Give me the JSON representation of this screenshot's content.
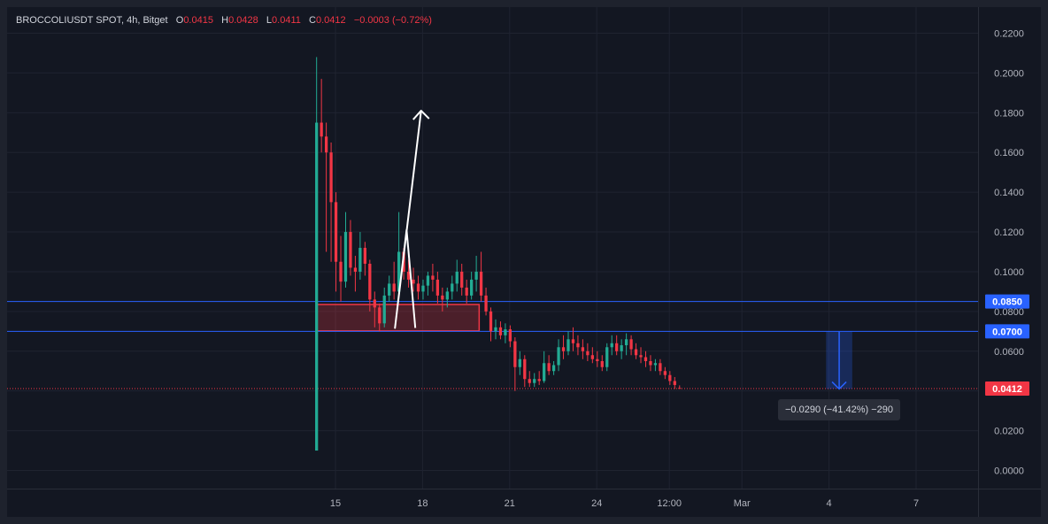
{
  "legend": {
    "symbol": "BROCCOLIUSDT SPOT, 4h, Bitget",
    "o_label": "O",
    "o_value": "0.0415",
    "h_label": "H",
    "h_value": "0.0428",
    "l_label": "L",
    "l_value": "0.0411",
    "c_label": "C",
    "c_value": "0.0412",
    "change": "−0.0003 (−0.72%)"
  },
  "measure_label": "−0.0290 (−41.42%) −290",
  "colors": {
    "up": "#22ab94",
    "down": "#f23645",
    "level_line": "#2962ff",
    "zone_fill": "#f23645",
    "background": "#131722",
    "grid": "#1f2330"
  },
  "chart_data": {
    "type": "candlestick",
    "title": "BROCCOLIUSDT SPOT, 4h, Bitget",
    "ylim": [
      -0.01,
      0.225
    ],
    "y_ticks": [
      "0.0000",
      "0.0200",
      "0.0400",
      "0.0600",
      "0.0800",
      "0.1000",
      "0.1200",
      "0.1400",
      "0.1600",
      "0.1800",
      "0.2000",
      "0.2200"
    ],
    "x_ticks": [
      {
        "label": "15",
        "day": 0
      },
      {
        "label": "18",
        "day": 3
      },
      {
        "label": "21",
        "day": 6
      },
      {
        "label": "24",
        "day": 9
      },
      {
        "label": "12:00",
        "day": 11.5
      },
      {
        "label": "Mar",
        "day": 14
      },
      {
        "label": "4",
        "day": 17
      },
      {
        "label": "7",
        "day": 20
      }
    ],
    "xlim_days": [
      -11.25,
      23.75
    ],
    "candle_start_day": -0.65,
    "candle_interval_days": 0.1667,
    "candles": [
      [
        0.01,
        0.208,
        0.01,
        0.175
      ],
      [
        0.175,
        0.197,
        0.16,
        0.168
      ],
      [
        0.168,
        0.175,
        0.11,
        0.16
      ],
      [
        0.16,
        0.165,
        0.105,
        0.135
      ],
      [
        0.135,
        0.14,
        0.09,
        0.105
      ],
      [
        0.105,
        0.118,
        0.085,
        0.095
      ],
      [
        0.095,
        0.13,
        0.092,
        0.12
      ],
      [
        0.12,
        0.126,
        0.098,
        0.102
      ],
      [
        0.102,
        0.108,
        0.09,
        0.1
      ],
      [
        0.1,
        0.12,
        0.096,
        0.112
      ],
      [
        0.112,
        0.115,
        0.098,
        0.104
      ],
      [
        0.104,
        0.106,
        0.08,
        0.086
      ],
      [
        0.086,
        0.09,
        0.072,
        0.082
      ],
      [
        0.082,
        0.084,
        0.07,
        0.074
      ],
      [
        0.074,
        0.092,
        0.072,
        0.088
      ],
      [
        0.088,
        0.098,
        0.085,
        0.094
      ],
      [
        0.094,
        0.105,
        0.086,
        0.09
      ],
      [
        0.09,
        0.13,
        0.088,
        0.11
      ],
      [
        0.11,
        0.112,
        0.096,
        0.1
      ],
      [
        0.1,
        0.106,
        0.092,
        0.096
      ],
      [
        0.096,
        0.102,
        0.09,
        0.094
      ],
      [
        0.094,
        0.098,
        0.086,
        0.09
      ],
      [
        0.09,
        0.096,
        0.086,
        0.093
      ],
      [
        0.093,
        0.1,
        0.088,
        0.098
      ],
      [
        0.098,
        0.104,
        0.09,
        0.096
      ],
      [
        0.096,
        0.1,
        0.084,
        0.088
      ],
      [
        0.088,
        0.092,
        0.08,
        0.086
      ],
      [
        0.086,
        0.092,
        0.082,
        0.09
      ],
      [
        0.09,
        0.098,
        0.086,
        0.094
      ],
      [
        0.094,
        0.106,
        0.09,
        0.1
      ],
      [
        0.1,
        0.104,
        0.088,
        0.092
      ],
      [
        0.092,
        0.096,
        0.084,
        0.088
      ],
      [
        0.088,
        0.1,
        0.086,
        0.096
      ],
      [
        0.096,
        0.108,
        0.09,
        0.1
      ],
      [
        0.1,
        0.11,
        0.085,
        0.088
      ],
      [
        0.088,
        0.092,
        0.078,
        0.08
      ],
      [
        0.08,
        0.082,
        0.065,
        0.07
      ],
      [
        0.07,
        0.076,
        0.066,
        0.072
      ],
      [
        0.072,
        0.075,
        0.066,
        0.068
      ],
      [
        0.068,
        0.074,
        0.064,
        0.071
      ],
      [
        0.071,
        0.073,
        0.062,
        0.065
      ],
      [
        0.065,
        0.067,
        0.04,
        0.052
      ],
      [
        0.052,
        0.06,
        0.048,
        0.056
      ],
      [
        0.056,
        0.058,
        0.042,
        0.046
      ],
      [
        0.046,
        0.05,
        0.042,
        0.044
      ],
      [
        0.044,
        0.049,
        0.042,
        0.046
      ],
      [
        0.046,
        0.05,
        0.043,
        0.045
      ],
      [
        0.045,
        0.06,
        0.044,
        0.054
      ],
      [
        0.054,
        0.058,
        0.048,
        0.05
      ],
      [
        0.05,
        0.055,
        0.048,
        0.053
      ],
      [
        0.053,
        0.066,
        0.05,
        0.062
      ],
      [
        0.062,
        0.068,
        0.056,
        0.06
      ],
      [
        0.06,
        0.07,
        0.058,
        0.066
      ],
      [
        0.066,
        0.072,
        0.06,
        0.064
      ],
      [
        0.064,
        0.068,
        0.058,
        0.062
      ],
      [
        0.062,
        0.066,
        0.056,
        0.06
      ],
      [
        0.06,
        0.064,
        0.055,
        0.058
      ],
      [
        0.058,
        0.062,
        0.054,
        0.056
      ],
      [
        0.056,
        0.06,
        0.052,
        0.055
      ],
      [
        0.055,
        0.058,
        0.05,
        0.052
      ],
      [
        0.052,
        0.064,
        0.05,
        0.062
      ],
      [
        0.062,
        0.068,
        0.058,
        0.064
      ],
      [
        0.064,
        0.068,
        0.058,
        0.06
      ],
      [
        0.06,
        0.066,
        0.056,
        0.063
      ],
      [
        0.063,
        0.069,
        0.058,
        0.066
      ],
      [
        0.066,
        0.068,
        0.058,
        0.061
      ],
      [
        0.061,
        0.064,
        0.056,
        0.058
      ],
      [
        0.058,
        0.062,
        0.054,
        0.057
      ],
      [
        0.057,
        0.06,
        0.052,
        0.055
      ],
      [
        0.055,
        0.058,
        0.05,
        0.053
      ],
      [
        0.053,
        0.056,
        0.05,
        0.054
      ],
      [
        0.054,
        0.056,
        0.048,
        0.05
      ],
      [
        0.05,
        0.052,
        0.046,
        0.048
      ],
      [
        0.048,
        0.05,
        0.043,
        0.045
      ],
      [
        0.045,
        0.047,
        0.041,
        0.043
      ],
      [
        0.0415,
        0.0428,
        0.0411,
        0.0412
      ]
    ],
    "horizontal_levels": [
      {
        "price": 0.085,
        "label": "0.0850"
      },
      {
        "price": 0.07,
        "label": "0.0700"
      }
    ],
    "last_price": {
      "price": 0.0412,
      "label": "0.0412"
    },
    "zone": {
      "x1_day": -0.65,
      "x2_day": 4.95,
      "y_top": 0.0835,
      "y_bottom": 0.0702
    },
    "drawn_path": [
      [
        2.75,
        0.0717
      ],
      [
        2.45,
        0.121
      ],
      [
        2.05,
        0.0717
      ],
      [
        2.95,
        0.181
      ]
    ],
    "measure": {
      "x1_day": 16.9,
      "x2_day": 17.8,
      "y_from": 0.07,
      "y_to": 0.041
    }
  }
}
